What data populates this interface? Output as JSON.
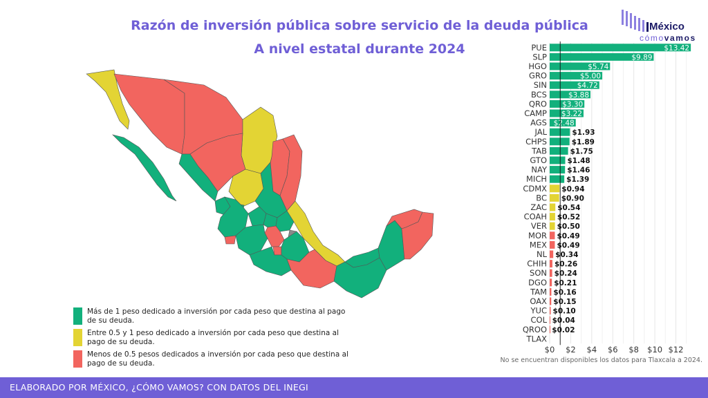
{
  "title_line1": "Razón de inversión pública sobre servicio de la deuda pública",
  "title_line2": "A nivel estatal durante 2024",
  "logo": {
    "main": "México",
    "sub_a": "cómo",
    "sub_b": "vamos"
  },
  "legend": [
    {
      "label": "Más de 1 peso dedicado a inversión por cada peso que destina al pago de su deuda.",
      "color": "#12b07c"
    },
    {
      "label": "Entre 0.5 y 1 peso dedicado a inversión por cada peso que destina al pago de su deuda.",
      "color": "#e3d434"
    },
    {
      "label": "Menos de 0.5 pesos dedicados a inversión por cada peso que destina al pago de su deuda.",
      "color": "#f2655f"
    }
  ],
  "note": "No se encuentran disponibles los datos para Tlaxcala a 2024.",
  "footer": "ELABORADO POR MÉXICO, ¿CÓMO VAMOS? CON DATOS DEL INEGI",
  "chart_data": {
    "type": "bar",
    "orientation": "horizontal",
    "categories": [
      "PUE",
      "SLP",
      "HGO",
      "GRO",
      "SIN",
      "BCS",
      "QRO",
      "CAMP",
      "AGS",
      "JAL",
      "CHPS",
      "TAB",
      "GTO",
      "NAY",
      "MICH",
      "CDMX",
      "BC",
      "ZAC",
      "COAH",
      "VER",
      "MOR",
      "MEX",
      "NL",
      "CHIH",
      "SON",
      "DGO",
      "TAM",
      "OAX",
      "YUC",
      "COL",
      "QROO",
      "TLAX"
    ],
    "values": [
      13.42,
      9.89,
      5.74,
      5.0,
      4.72,
      3.88,
      3.3,
      3.22,
      2.48,
      1.93,
      1.89,
      1.75,
      1.48,
      1.46,
      1.39,
      0.94,
      0.9,
      0.54,
      0.52,
      0.5,
      0.49,
      0.49,
      0.34,
      0.26,
      0.24,
      0.21,
      0.16,
      0.15,
      0.1,
      0.04,
      0.02,
      null
    ],
    "labels": [
      "$13.42",
      "$9.89",
      "$5.74",
      "$5.00",
      "$4.72",
      "$3.88",
      "$3.30",
      "$3.22",
      "$2.48",
      "$1.93",
      "$1.89",
      "$1.75",
      "$1.48",
      "$1.46",
      "$1.39",
      "$0.94",
      "$0.90",
      "$0.54",
      "$0.52",
      "$0.50",
      "$0.49",
      "$0.49",
      "$0.34",
      "$0.26",
      "$0.24",
      "$0.21",
      "$0.16",
      "$0.15",
      "$0.10",
      "$0.04",
      "$0.02",
      ""
    ],
    "xticks": [
      "$0",
      "$2",
      "$4",
      "$6",
      "$8",
      "$10",
      "$12"
    ],
    "xtick_values": [
      0,
      2,
      4,
      6,
      8,
      10,
      12
    ],
    "xlim": [
      0,
      14.2
    ],
    "reference_line": 1,
    "grid": true,
    "colors": {
      "high": "#12b07c",
      "mid": "#e3d434",
      "low": "#f2655f"
    }
  }
}
